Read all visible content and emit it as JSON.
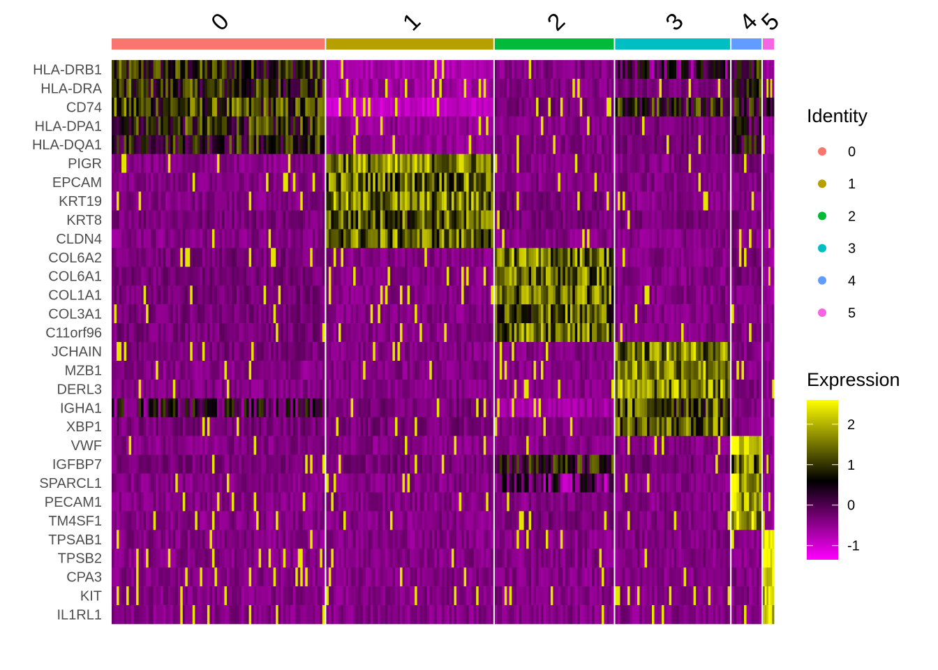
{
  "chart_data": {
    "type": "heatmap",
    "title": "",
    "xlabel": "",
    "ylabel": "",
    "clusters": [
      {
        "label": "0",
        "color": "#F8766D",
        "relative_size": 306
      },
      {
        "label": "1",
        "color": "#B79F00",
        "relative_size": 240
      },
      {
        "label": "2",
        "color": "#00BA38",
        "relative_size": 171
      },
      {
        "label": "3",
        "color": "#00BFC4",
        "relative_size": 165
      },
      {
        "label": "4",
        "color": "#619CFF",
        "relative_size": 43
      },
      {
        "label": "5",
        "color": "#F564E3",
        "relative_size": 16
      }
    ],
    "genes": [
      "HLA-DRB1",
      "HLA-DRA",
      "CD74",
      "HLA-DPA1",
      "HLA-DQA1",
      "PIGR",
      "EPCAM",
      "KRT19",
      "KRT8",
      "CLDN4",
      "COL6A2",
      "COL6A1",
      "COL1A1",
      "COL3A1",
      "C11orf96",
      "JCHAIN",
      "MZB1",
      "DERL3",
      "IGHA1",
      "XBP1",
      "VWF",
      "IGFBP7",
      "SPARCL1",
      "PECAM1",
      "TM4SF1",
      "TPSAB1",
      "TPSB2",
      "CPA3",
      "KIT",
      "IL1RL1"
    ],
    "mean_expression": {
      "HLA-DRB1": [
        0.8,
        -0.7,
        -0.4,
        0.0,
        0.6,
        -0.5
      ],
      "HLA-DRA": [
        0.8,
        -0.6,
        -0.4,
        -0.3,
        0.5,
        -0.5
      ],
      "CD74": [
        1.0,
        -0.9,
        -0.3,
        0.7,
        0.7,
        0.5
      ],
      "HLA-DPA1": [
        0.8,
        -0.5,
        -0.4,
        -0.3,
        0.4,
        -0.5
      ],
      "HLA-DQA1": [
        0.7,
        -0.5,
        -0.4,
        -0.3,
        0.3,
        -0.5
      ],
      "PIGR": [
        -0.4,
        1.6,
        -0.4,
        -0.4,
        -0.3,
        -0.5
      ],
      "EPCAM": [
        -0.4,
        1.4,
        -0.4,
        -0.4,
        -0.4,
        -0.5
      ],
      "KRT19": [
        -0.4,
        1.5,
        -0.3,
        -0.4,
        -0.4,
        -0.5
      ],
      "KRT8": [
        -0.3,
        1.3,
        -0.3,
        -0.3,
        -0.3,
        -0.5
      ],
      "CLDN4": [
        -0.4,
        1.4,
        -0.4,
        -0.4,
        -0.4,
        -0.5
      ],
      "COL6A2": [
        -0.3,
        -0.4,
        1.5,
        -0.4,
        -0.3,
        -0.5
      ],
      "COL6A1": [
        -0.3,
        -0.4,
        1.4,
        -0.4,
        -0.3,
        -0.5
      ],
      "COL1A1": [
        -0.3,
        -0.4,
        1.4,
        -0.4,
        -0.4,
        -0.5
      ],
      "COL3A1": [
        -0.3,
        -0.4,
        1.3,
        -0.4,
        -0.4,
        -0.5
      ],
      "C11orf96": [
        -0.3,
        -0.4,
        1.4,
        -0.4,
        -0.4,
        -0.5
      ],
      "JCHAIN": [
        -0.3,
        -0.4,
        -0.4,
        1.6,
        -0.4,
        -0.5
      ],
      "MZB1": [
        -0.4,
        -0.4,
        -0.4,
        1.7,
        -0.4,
        -0.5
      ],
      "DERL3": [
        -0.4,
        -0.4,
        -0.4,
        1.6,
        -0.4,
        -0.5
      ],
      "IGHA1": [
        0.2,
        -0.3,
        -0.6,
        1.2,
        -0.4,
        -0.5
      ],
      "XBP1": [
        -0.3,
        -0.3,
        -0.4,
        1.3,
        -0.4,
        -0.5
      ],
      "VWF": [
        -0.4,
        -0.4,
        -0.4,
        -0.4,
        2.2,
        -0.5
      ],
      "IGFBP7": [
        -0.3,
        -0.3,
        0.6,
        -0.3,
        1.4,
        -0.5
      ],
      "SPARCL1": [
        -0.4,
        -0.4,
        -0.2,
        -0.4,
        2.1,
        -0.5
      ],
      "PECAM1": [
        -0.4,
        -0.4,
        -0.4,
        -0.4,
        2.0,
        -0.5
      ],
      "TM4SF1": [
        -0.4,
        -0.4,
        -0.3,
        -0.4,
        1.9,
        -0.5
      ],
      "TPSAB1": [
        -0.4,
        -0.4,
        -0.4,
        -0.4,
        -0.4,
        2.5
      ],
      "TPSB2": [
        -0.4,
        -0.4,
        -0.4,
        -0.4,
        -0.4,
        2.5
      ],
      "CPA3": [
        -0.4,
        -0.4,
        -0.4,
        -0.4,
        -0.4,
        2.4
      ],
      "KIT": [
        -0.4,
        -0.4,
        -0.4,
        -0.4,
        -0.4,
        2.4
      ],
      "IL1RL1": [
        -0.4,
        -0.4,
        -0.4,
        -0.4,
        -0.4,
        2.2
      ]
    },
    "color_scale": {
      "range": [
        -1.35,
        2.6
      ],
      "stops": [
        {
          "value": -1.35,
          "color": "#FF00FF"
        },
        {
          "value": 0.6,
          "color": "#000000"
        },
        {
          "value": 2.6,
          "color": "#FFFF00"
        }
      ],
      "ticks": [
        2,
        1,
        0,
        -1
      ]
    },
    "legend": {
      "identity_title": "Identity",
      "identity_entries": [
        "0",
        "1",
        "2",
        "3",
        "4",
        "5"
      ],
      "expression_title": "Expression",
      "expression_tick_labels": [
        "2",
        "1",
        "0",
        "-1"
      ],
      "position": "right"
    }
  }
}
